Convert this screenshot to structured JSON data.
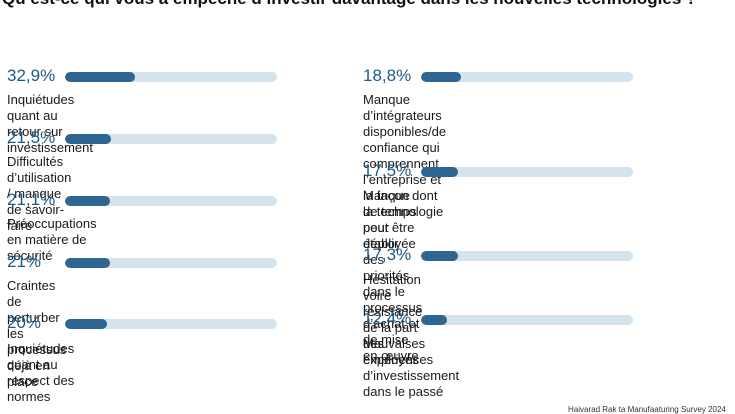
{
  "chart_data": {
    "type": "bar",
    "title": "Qu’est-ce qui vous a empêché d’investir davantage dans les nouvelles technologies ?",
    "unit": "%",
    "xlim": [
      0,
      100
    ],
    "colors": {
      "fill": "#2e6591",
      "track": "#d4e3ec",
      "value_text": "#1f5a87"
    },
    "categories": [
      "Inquiétudes quant au retour sur investissement",
      "Difficultés d’utilisation / manque de savoir-faire",
      "Préoccupations en matière de sécurité",
      "Craintes de perturber les processus déjà en place",
      "Inquiétudes quant au respect des normes",
      "Manque d’intégrateurs disponibles/de confiance qui\ncomprennent l’entreprise et la façon dont la technologie\npeut être déployée",
      "Manque de temps pour établir des priorités\ndans le processus d’achat et de mise en œuvre",
      "Hésitation voire résistance de la part des employés",
      "Mauvaises expériences d’investissement dans le passé"
    ],
    "values": [
      32.9,
      21.5,
      21.1,
      21,
      20,
      18.8,
      17.5,
      17.3,
      12.4
    ],
    "value_labels": [
      "32,9%",
      "21,5%",
      "21,1%",
      "21%",
      "20%",
      "18,8%",
      "17,5%",
      "17,3%",
      "12,4%"
    ]
  },
  "source": "Haivarad Rak ta Manufaaturing Survey 2024"
}
